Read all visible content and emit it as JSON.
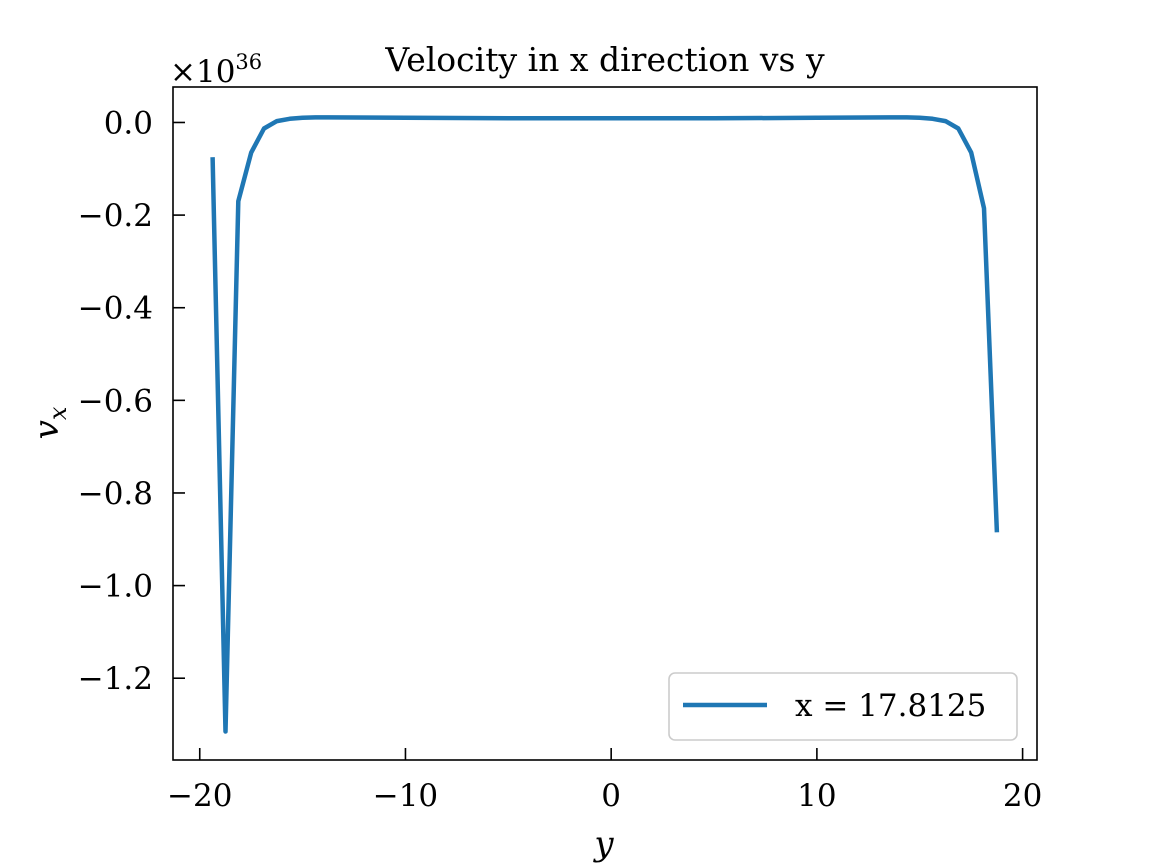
{
  "chart_data": {
    "type": "line",
    "title": "Velocity in x direction vs y",
    "xlabel": "y",
    "ylabel": "v",
    "ylabel_subscript": "x",
    "y_scale_multiplier": "×10",
    "y_scale_exponent": "36",
    "xlim": [
      -21.3,
      20.7
    ],
    "ylim": [
      -1.3766,
      0.0766
    ],
    "x_ticks": [
      -20,
      -10,
      0,
      10,
      20
    ],
    "x_tick_labels": [
      "−20",
      "−10",
      "0",
      "10",
      "20"
    ],
    "y_ticks": [
      0.0,
      -0.2,
      -0.4,
      -0.6,
      -0.8,
      -1.0,
      -1.2
    ],
    "y_tick_labels": [
      "0.0",
      "−0.2",
      "−0.4",
      "−0.6",
      "−0.8",
      "−1.0",
      "−1.2"
    ],
    "grid": false,
    "legend_position": "lower right",
    "series": [
      {
        "name": "x = 17.8125",
        "color": "#1f77b4",
        "x": [
          -19.375,
          -18.75,
          -18.125,
          -17.5,
          -16.875,
          -16.25,
          -15.625,
          -15.0,
          -14.375,
          -13.75,
          -10.0,
          -5.0,
          0.0,
          5.0,
          10.0,
          13.75,
          14.375,
          15.0,
          15.625,
          16.25,
          16.875,
          17.5,
          18.125,
          18.75
        ],
        "y": [
          -0.075,
          -1.315,
          -0.17,
          -0.065,
          -0.013,
          0.003,
          0.008,
          0.01,
          0.011,
          0.011,
          0.01,
          0.009,
          0.009,
          0.009,
          0.01,
          0.011,
          0.011,
          0.01,
          0.008,
          0.003,
          -0.013,
          -0.065,
          -0.185,
          -0.885
        ]
      }
    ]
  }
}
